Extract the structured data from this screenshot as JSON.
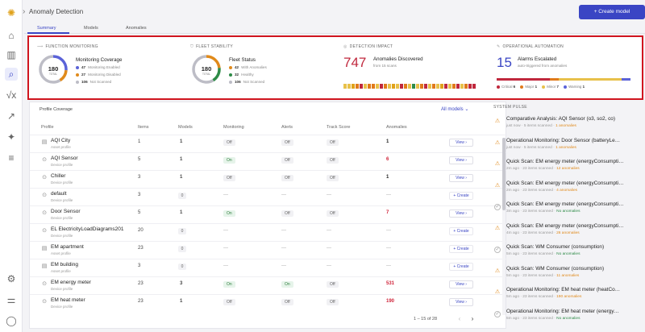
{
  "app": {
    "title": "Anomaly Detection",
    "create_label": "+ Create model"
  },
  "tabs": [
    {
      "label": "Summary"
    },
    {
      "label": "Models"
    },
    {
      "label": "Anomalies"
    }
  ],
  "kpis": {
    "function_monitoring": {
      "header": "FUNCTION MONITORING",
      "total": "180",
      "total_label": "TOTAL",
      "title": "Monitoring Coverage",
      "rows": [
        {
          "count": "47",
          "label": "Monitoring Enabled",
          "color": "#5b63d8"
        },
        {
          "count": "27",
          "label": "Monitoring Disabled",
          "color": "#e08a1b"
        },
        {
          "count": "106",
          "label": "Not Scanned",
          "color": "#bdbdc6"
        }
      ],
      "fractions": [
        0.261,
        0.15,
        0.589
      ]
    },
    "fleet_stability": {
      "header": "FLEET STABILITY",
      "total": "180",
      "total_label": "TOTAL",
      "title": "Fleet Status",
      "rows": [
        {
          "count": "42",
          "label": "With Anomalies",
          "color": "#e08a1b"
        },
        {
          "count": "32",
          "label": "Healthy",
          "color": "#2e8b47"
        },
        {
          "count": "106",
          "label": "Not Scanned",
          "color": "#bdbdc6"
        }
      ],
      "fractions": [
        0.233,
        0.178,
        0.589
      ]
    },
    "detection_impact": {
      "header": "DETECTION IMPACT",
      "value": "747",
      "label": "Anomalies Discovered",
      "sub": "from 15 scans",
      "ticks": [
        "",
        "",
        "",
        "",
        ""
      ]
    },
    "operational_automation": {
      "header": "OPERATIONAL AUTOMATION",
      "value": "15",
      "label": "Alarms Escalated",
      "sub": "auto-triggered from anomalies",
      "severities": [
        {
          "label": "Critical",
          "count": "6",
          "color": "#c0283d"
        },
        {
          "label": "Major",
          "count": "1",
          "color": "#e07a1b"
        },
        {
          "label": "Minor",
          "count": "7",
          "color": "#e8c14a"
        },
        {
          "label": "Warning",
          "count": "1",
          "color": "#5b63d8"
        }
      ]
    }
  },
  "table": {
    "title": "Profile Coverage",
    "all_models": "All models ⌄",
    "columns": [
      "Profile",
      "Items",
      "Models",
      "Monitoring",
      "Alerts",
      "Track Score",
      "Anomalies"
    ],
    "rows": [
      {
        "name": "AQI City",
        "type": "Asset profile",
        "items": "1",
        "models": "1",
        "monitoring": "Off",
        "alerts": "Off",
        "track": "Off",
        "anomalies": "1",
        "action": "View ›"
      },
      {
        "name": "AQI Sensor",
        "type": "Device profile",
        "items": "5",
        "models": "1",
        "monitoring": "On",
        "alerts": "Off",
        "track": "Off",
        "anomalies": "6",
        "action": "View ›"
      },
      {
        "name": "Chiller",
        "type": "Device profile",
        "items": "3",
        "models": "1",
        "monitoring": "Off",
        "alerts": "Off",
        "track": "Off",
        "anomalies": "1",
        "action": "View ›"
      },
      {
        "name": "default",
        "type": "Device profile",
        "items": "3",
        "models": "0",
        "monitoring": "—",
        "alerts": "—",
        "track": "—",
        "anomalies": "—",
        "action": "+ Create"
      },
      {
        "name": "Door Sensor",
        "type": "Device profile",
        "items": "5",
        "models": "1",
        "monitoring": "On",
        "alerts": "Off",
        "track": "Off",
        "anomalies": "7",
        "action": "View ›"
      },
      {
        "name": "EL ElectricityLoadDiagrams201",
        "type": "Device profile",
        "items": "20",
        "models": "0",
        "monitoring": "—",
        "alerts": "—",
        "track": "—",
        "anomalies": "—",
        "action": "+ Create"
      },
      {
        "name": "EM apartment",
        "type": "Asset profile",
        "items": "23",
        "models": "0",
        "monitoring": "—",
        "alerts": "—",
        "track": "—",
        "anomalies": "—",
        "action": "+ Create"
      },
      {
        "name": "EM building",
        "type": "Asset profile",
        "items": "3",
        "models": "0",
        "monitoring": "—",
        "alerts": "—",
        "track": "—",
        "anomalies": "—",
        "action": "+ Create"
      },
      {
        "name": "EM energy meter",
        "type": "Device profile",
        "items": "23",
        "models": "3",
        "monitoring": "On",
        "alerts": "On",
        "track": "Off",
        "anomalies": "531",
        "action": "View ›"
      },
      {
        "name": "EM heat meter",
        "type": "Device profile",
        "items": "23",
        "models": "1",
        "monitoring": "Off",
        "alerts": "Off",
        "track": "Off",
        "anomalies": "190",
        "action": "View ›"
      }
    ],
    "pagination": "1 – 15 of 28"
  },
  "pulse": {
    "header": "SYSTEM PULSE",
    "items": [
      {
        "title": "Comparative Analysis: AQI Sensor (o3, so2, co)",
        "time": "just now",
        "items": "5 items scanned",
        "result": "1 anomalies",
        "status": "warn"
      },
      {
        "title": "Operational Monitoring: Door Sensor (batteryLe…",
        "time": "just now",
        "items": "5 items scanned",
        "result": "1 anomalies",
        "status": "warn"
      },
      {
        "title": "Quick Scan: EM energy meter (energyConsumpti…",
        "time": "2m ago",
        "items": "23 items scanned",
        "result": "12 anomalies",
        "status": "warn"
      },
      {
        "title": "Quick Scan: EM energy meter (energyConsumpti…",
        "time": "2m ago",
        "items": "23 items scanned",
        "result": "4 anomalies",
        "status": "warn"
      },
      {
        "title": "Quick Scan: EM energy meter (energyConsumpti…",
        "time": "3m ago",
        "items": "23 items scanned",
        "result": "No anomalies",
        "status": "ok"
      },
      {
        "title": "Quick Scan: EM energy meter (energyConsumpti…",
        "time": "4m ago",
        "items": "23 items scanned",
        "result": "26 anomalies",
        "status": "warn"
      },
      {
        "title": "Quick Scan: WM Consumer (consumption)",
        "time": "5m ago",
        "items": "23 items scanned",
        "result": "No anomalies",
        "status": "ok"
      },
      {
        "title": "Quick Scan: WM Consumer (consumption)",
        "time": "5m ago",
        "items": "23 items scanned",
        "result": "11 anomalies",
        "status": "warn"
      },
      {
        "title": "Operational Monitoring: EM heat meter (heatCo…",
        "time": "5m ago",
        "items": "23 items scanned",
        "result": "190 anomalies",
        "status": "warn"
      },
      {
        "title": "Operational Monitoring: EM heat meter (energy…",
        "time": "5m ago",
        "items": "23 items scanned",
        "result": "No anomalies",
        "status": "ok"
      }
    ]
  }
}
